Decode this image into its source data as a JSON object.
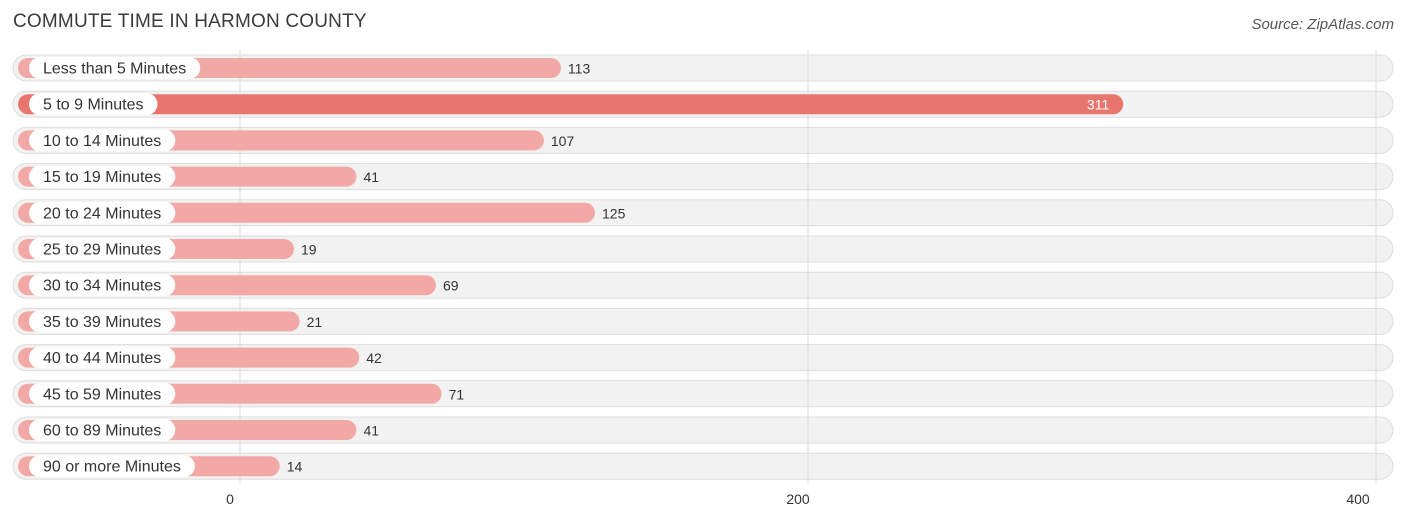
{
  "header": {
    "title": "COMMUTE TIME IN HARMON COUNTY",
    "source": "Source: ZipAtlas.com"
  },
  "colors": {
    "bar": "#f2a9a6",
    "bar_highlight": "#e8766e",
    "row_background": "#f2f2f2"
  },
  "chart_data": {
    "type": "bar",
    "orientation": "horizontal",
    "title": "COMMUTE TIME IN HARMON COUNTY",
    "categories": [
      "Less than 5 Minutes",
      "5 to 9 Minutes",
      "10 to 14 Minutes",
      "15 to 19 Minutes",
      "20 to 24 Minutes",
      "25 to 29 Minutes",
      "30 to 34 Minutes",
      "35 to 39 Minutes",
      "40 to 44 Minutes",
      "45 to 59 Minutes",
      "60 to 89 Minutes",
      "90 or more Minutes"
    ],
    "values": [
      113,
      311,
      107,
      41,
      125,
      19,
      69,
      21,
      42,
      71,
      41,
      14
    ],
    "xlim": [
      0,
      400
    ],
    "xticks": [
      0,
      200,
      400
    ],
    "grid": true,
    "highlight_index": 1
  }
}
